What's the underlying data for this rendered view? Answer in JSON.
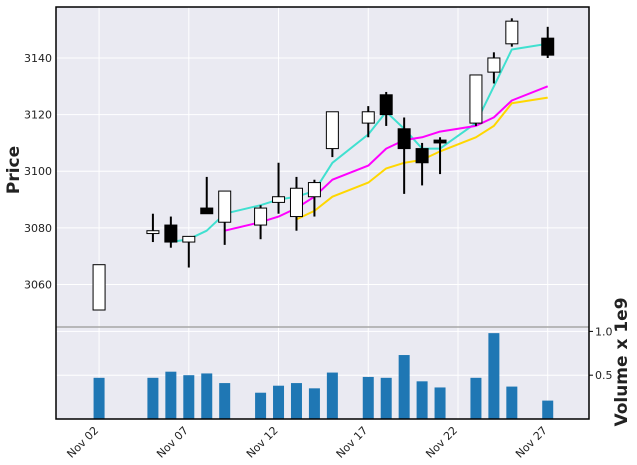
{
  "chart_data": {
    "type": "candlestick",
    "ylabel": "Price",
    "volume_label": "Volume x 1e9",
    "colors": {
      "panel_bg": "#eaeaf2",
      "grid": "#ffffff",
      "up_fill": "#ffffff",
      "down_fill": "#000000",
      "wick": "#000000",
      "volume_bar": "#1f77b4",
      "divider": "#a6a6a6",
      "frame": "#000000",
      "ma_short": "#40e0d0",
      "ma_mid": "#ff00ff",
      "ma_long": "#ffd700"
    },
    "price_axis": {
      "ylim": [
        3045,
        3158
      ],
      "ticks": [
        3060,
        3080,
        3100,
        3120,
        3140
      ],
      "tick_labels": [
        "3060",
        "3080",
        "3100",
        "3120",
        "3140"
      ]
    },
    "volume_axis": {
      "ylim": [
        0,
        1.05
      ],
      "ticks": [
        0.5,
        1.0
      ],
      "tick_labels": [
        "0.5",
        "1.0"
      ]
    },
    "x_axis": {
      "xlim": [
        29.6,
        59.3
      ],
      "ticks": [
        32,
        37,
        42,
        47,
        52,
        57
      ],
      "tick_labels": [
        "Nov 02",
        "Nov 07",
        "Nov 12",
        "Nov 17",
        "Nov 22",
        "Nov 27"
      ]
    },
    "candles": [
      {
        "x": 32,
        "open": 3051,
        "high": 3067,
        "low": 3051,
        "close": 3067,
        "volume": 0.47
      },
      {
        "x": 35,
        "open": 3078,
        "high": 3085,
        "low": 3075,
        "close": 3079,
        "volume": 0.47
      },
      {
        "x": 36,
        "open": 3081,
        "high": 3084,
        "low": 3073,
        "close": 3075,
        "volume": 0.54
      },
      {
        "x": 37,
        "open": 3075,
        "high": 3077,
        "low": 3066,
        "close": 3077,
        "volume": 0.5
      },
      {
        "x": 38,
        "open": 3087,
        "high": 3098,
        "low": 3085,
        "close": 3085,
        "volume": 0.52
      },
      {
        "x": 39,
        "open": 3082,
        "high": 3093,
        "low": 3074,
        "close": 3093,
        "volume": 0.41
      },
      {
        "x": 41,
        "open": 3081,
        "high": 3088,
        "low": 3076,
        "close": 3087,
        "volume": 0.3
      },
      {
        "x": 42,
        "open": 3089,
        "high": 3103,
        "low": 3085,
        "close": 3091,
        "volume": 0.38
      },
      {
        "x": 43,
        "open": 3084,
        "high": 3098,
        "low": 3079,
        "close": 3094,
        "volume": 0.41
      },
      {
        "x": 44,
        "open": 3091,
        "high": 3097,
        "low": 3084,
        "close": 3096,
        "volume": 0.35
      },
      {
        "x": 45,
        "open": 3108,
        "high": 3121,
        "low": 3105,
        "close": 3121,
        "volume": 0.53
      },
      {
        "x": 47,
        "open": 3117,
        "high": 3123,
        "low": 3112,
        "close": 3121,
        "volume": 0.48
      },
      {
        "x": 48,
        "open": 3127,
        "high": 3128,
        "low": 3116,
        "close": 3120,
        "volume": 0.47
      },
      {
        "x": 49,
        "open": 3115,
        "high": 3119,
        "low": 3092,
        "close": 3108,
        "volume": 0.73
      },
      {
        "x": 50,
        "open": 3108,
        "high": 3110,
        "low": 3095,
        "close": 3103,
        "volume": 0.43
      },
      {
        "x": 51,
        "open": 3111,
        "high": 3112,
        "low": 3099,
        "close": 3110,
        "volume": 0.36
      },
      {
        "x": 53,
        "open": 3117,
        "high": 3134,
        "low": 3116,
        "close": 3134,
        "volume": 0.47
      },
      {
        "x": 54,
        "open": 3135,
        "high": 3142,
        "low": 3131,
        "close": 3140,
        "volume": 0.98
      },
      {
        "x": 55,
        "open": 3145,
        "high": 3154,
        "low": 3144,
        "close": 3153,
        "volume": 0.37
      },
      {
        "x": 57,
        "open": 3147,
        "high": 3151,
        "low": 3140,
        "close": 3141,
        "volume": 0.21
      }
    ],
    "moving_averages": [
      {
        "color_key": "ma_short",
        "points": [
          [
            36,
            3075
          ],
          [
            37,
            3076
          ],
          [
            38,
            3079
          ],
          [
            39,
            3085
          ],
          [
            41,
            3088
          ],
          [
            42,
            3090
          ],
          [
            43,
            3091
          ],
          [
            44,
            3093
          ],
          [
            45,
            3103
          ],
          [
            47,
            3113
          ],
          [
            48,
            3121
          ],
          [
            49,
            3115
          ],
          [
            50,
            3108
          ],
          [
            51,
            3108
          ],
          [
            53,
            3117
          ],
          [
            54,
            3130
          ],
          [
            55,
            3143
          ],
          [
            57,
            3145
          ]
        ]
      },
      {
        "color_key": "ma_mid",
        "points": [
          [
            39,
            3079
          ],
          [
            41,
            3082
          ],
          [
            42,
            3084
          ],
          [
            43,
            3087
          ],
          [
            44,
            3091
          ],
          [
            45,
            3097
          ],
          [
            47,
            3102
          ],
          [
            48,
            3108
          ],
          [
            49,
            3111
          ],
          [
            50,
            3112
          ],
          [
            51,
            3114
          ],
          [
            53,
            3116
          ],
          [
            54,
            3119
          ],
          [
            55,
            3125
          ],
          [
            57,
            3130
          ]
        ]
      },
      {
        "color_key": "ma_long",
        "points": [
          [
            43,
            3083
          ],
          [
            44,
            3086
          ],
          [
            45,
            3091
          ],
          [
            47,
            3096
          ],
          [
            48,
            3101
          ],
          [
            49,
            3103
          ],
          [
            50,
            3104
          ],
          [
            51,
            3107
          ],
          [
            53,
            3112
          ],
          [
            54,
            3116
          ],
          [
            55,
            3124
          ],
          [
            57,
            3126
          ]
        ]
      }
    ]
  }
}
